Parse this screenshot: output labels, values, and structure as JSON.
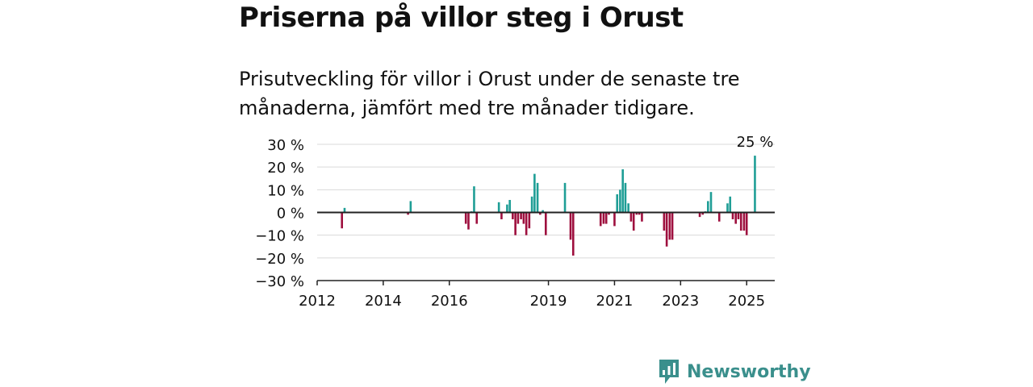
{
  "title": "Priserna på villor steg i Orust",
  "subtitle": "Prisutveckling för villor i Orust under de senaste tre månaderna, jämfört med tre månader tidigare.",
  "brand": {
    "name": "Newsworthy"
  },
  "colors": {
    "positive": "#1f9e96",
    "negative": "#9e0f3e",
    "grid": "#d9d9d9",
    "axis": "#222222",
    "brand": "#3a8f8c"
  },
  "chart_data": {
    "type": "bar",
    "ylabel": "",
    "xlabel": "",
    "ylim": [
      -30,
      30
    ],
    "yticks": [
      30,
      20,
      10,
      0,
      -10,
      -20,
      -30
    ],
    "ytick_labels": [
      "30 %",
      "20 %",
      "10 %",
      "0 %",
      "−10 %",
      "−20 %",
      "−30 %"
    ],
    "xlim": [
      2012.0,
      2025.85
    ],
    "xticks": [
      2012,
      2014,
      2016,
      2019,
      2021,
      2023,
      2025
    ],
    "xtick_labels": [
      "2012",
      "2014",
      "2016",
      "2019",
      "2021",
      "2023",
      "2025"
    ],
    "annotation": {
      "x": 2025.25,
      "value": 25,
      "text": "25 %"
    },
    "series": [
      {
        "x": [
          2012.75,
          2012.83,
          2014.75,
          2014.83,
          2016.5,
          2016.58,
          2016.67,
          2016.75,
          2016.83,
          2017.5,
          2017.58,
          2017.75,
          2017.83,
          2017.92,
          2018.0,
          2018.08,
          2018.17,
          2018.25,
          2018.33,
          2018.42,
          2018.5,
          2018.58,
          2018.67,
          2018.75,
          2018.83,
          2018.92,
          2019.5,
          2019.67,
          2019.75,
          2020.58,
          2020.67,
          2020.75,
          2020.83,
          2021.0,
          2021.08,
          2021.17,
          2021.25,
          2021.33,
          2021.42,
          2021.5,
          2021.58,
          2021.67,
          2021.75,
          2021.83,
          2022.5,
          2022.58,
          2022.67,
          2022.75,
          2023.58,
          2023.67,
          2023.75,
          2023.83,
          2023.92,
          2024.17,
          2024.42,
          2024.5,
          2024.58,
          2024.67,
          2024.75,
          2024.83,
          2024.92,
          2025.0,
          2025.25
        ],
        "values": [
          -7,
          2,
          -1,
          5,
          -5,
          -7.5,
          0.5,
          11.5,
          -5,
          4.5,
          -3,
          3.5,
          5.5,
          -3,
          -10,
          -5,
          -3,
          -5,
          -10,
          -7,
          7,
          17,
          13,
          -1,
          1,
          -10,
          13,
          -12,
          -19,
          -6,
          -5,
          -5,
          -1,
          -6,
          8,
          10,
          19,
          13,
          4,
          -4,
          -8,
          -1,
          -1,
          -4,
          -8,
          -15,
          -12,
          -12,
          -2,
          -1,
          0.5,
          5,
          9,
          -4,
          4,
          7,
          -3,
          -5,
          -3,
          -8,
          -8,
          -10,
          25
        ]
      }
    ]
  }
}
